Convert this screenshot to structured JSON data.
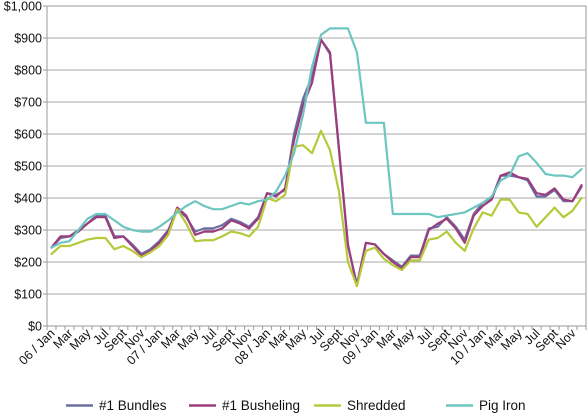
{
  "chart_data": {
    "type": "line",
    "title": "",
    "xlabel": "",
    "ylabel": "",
    "ylim": [
      0,
      1000
    ],
    "grid": true,
    "legend_position": "bottom",
    "y_ticks": [
      "$0",
      "$100",
      "$200",
      "$300",
      "$400",
      "$500",
      "$600",
      "$700",
      "$800",
      "$900",
      "$1,000"
    ],
    "x_tick_labels": [
      "06 / Jan",
      "Mar",
      "May",
      "Jul",
      "Sept",
      "Nov",
      "07 / Jan",
      "Mar",
      "May",
      "Jul",
      "Sept",
      "Nov",
      "08 / Jan",
      "Mar",
      "May",
      "Jul",
      "Sept",
      "Nov",
      "09 / Jan",
      "Mar",
      "May",
      "Jul",
      "Sept",
      "Nov",
      "10 / Jan",
      "Mar",
      "May",
      "Jul",
      "Sept",
      "Nov"
    ],
    "x_tick_month_index": [
      0,
      2,
      4,
      6,
      8,
      10,
      12,
      14,
      16,
      18,
      20,
      22,
      24,
      26,
      28,
      30,
      32,
      34,
      36,
      38,
      40,
      42,
      44,
      46,
      48,
      50,
      52,
      54,
      56,
      58
    ],
    "n_points": 60,
    "series": [
      {
        "name": "#1 Bundles",
        "color": "#6b6fa3",
        "values": [
          245,
          275,
          280,
          300,
          320,
          345,
          345,
          280,
          280,
          255,
          225,
          240,
          265,
          300,
          365,
          340,
          295,
          305,
          305,
          315,
          335,
          325,
          310,
          340,
          415,
          410,
          425,
          600,
          710,
          780,
          895,
          850,
          550,
          250,
          130,
          260,
          255,
          225,
          205,
          185,
          220,
          220,
          305,
          310,
          340,
          310,
          270,
          350,
          385,
          400,
          470,
          470,
          465,
          455,
          405,
          405,
          425,
          390,
          390,
          435
        ]
      },
      {
        "name": "#1 Busheling",
        "color": "#9b3d7d",
        "values": [
          245,
          280,
          280,
          295,
          320,
          340,
          340,
          275,
          280,
          250,
          220,
          235,
          260,
          295,
          370,
          345,
          285,
          295,
          295,
          305,
          330,
          320,
          305,
          335,
          415,
          405,
          430,
          580,
          690,
          760,
          895,
          855,
          555,
          255,
          125,
          260,
          255,
          225,
          200,
          180,
          215,
          215,
          300,
          320,
          335,
          305,
          260,
          345,
          375,
          395,
          470,
          480,
          465,
          460,
          415,
          410,
          430,
          395,
          390,
          440
        ]
      },
      {
        "name": "Shredded",
        "color": "#b5c93a",
        "values": [
          225,
          250,
          250,
          260,
          270,
          275,
          275,
          240,
          250,
          235,
          215,
          230,
          250,
          285,
          365,
          320,
          265,
          268,
          268,
          280,
          295,
          290,
          280,
          310,
          400,
          390,
          410,
          560,
          565,
          540,
          610,
          550,
          420,
          200,
          125,
          235,
          245,
          210,
          190,
          175,
          205,
          205,
          270,
          275,
          295,
          260,
          235,
          305,
          355,
          345,
          395,
          395,
          355,
          350,
          310,
          340,
          370,
          340,
          360,
          400
        ]
      },
      {
        "name": "Pig Iron",
        "color": "#6ec6c1",
        "values": [
          245,
          260,
          265,
          300,
          335,
          350,
          350,
          330,
          310,
          300,
          295,
          295,
          310,
          330,
          355,
          375,
          390,
          375,
          365,
          365,
          375,
          385,
          380,
          390,
          395,
          420,
          470,
          540,
          660,
          810,
          910,
          930,
          930,
          930,
          855,
          635,
          635,
          635,
          350,
          350,
          350,
          350,
          350,
          340,
          345,
          350,
          355,
          370,
          385,
          405,
          455,
          470,
          530,
          540,
          510,
          475,
          470,
          470,
          465,
          490
        ]
      }
    ]
  }
}
